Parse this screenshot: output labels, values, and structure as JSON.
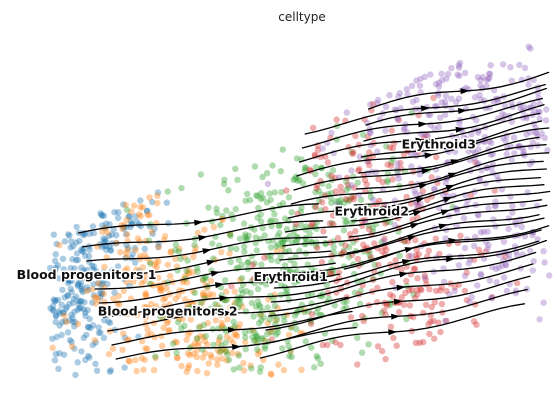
{
  "chart_data": {
    "type": "scatter",
    "title": "celltype",
    "xlabel": "",
    "ylabel": "",
    "grid": false,
    "axes_visible": false,
    "legend": "on data",
    "colors": {
      "Blood progenitors 1": "#1f77b4",
      "Blood progenitors 2": "#ff7f0e",
      "Erythroid1": "#2ca02c",
      "Erythroid2": "#d62728",
      "Erythroid3": "#9467bd"
    },
    "series": [
      {
        "name": "Blood progenitors 1",
        "label_pos": [
          0.155,
          0.675
        ]
      },
      {
        "name": "Blood progenitors 2",
        "label_pos": [
          0.3,
          0.765
        ]
      },
      {
        "name": "Erythroid1",
        "label_pos": [
          0.52,
          0.68
        ]
      },
      {
        "name": "Erythroid2",
        "label_pos": [
          0.665,
          0.52
        ]
      },
      {
        "name": "Erythroid3",
        "label_pos": [
          0.785,
          0.355
        ]
      }
    ],
    "overlay": "velocity streamlines"
  }
}
